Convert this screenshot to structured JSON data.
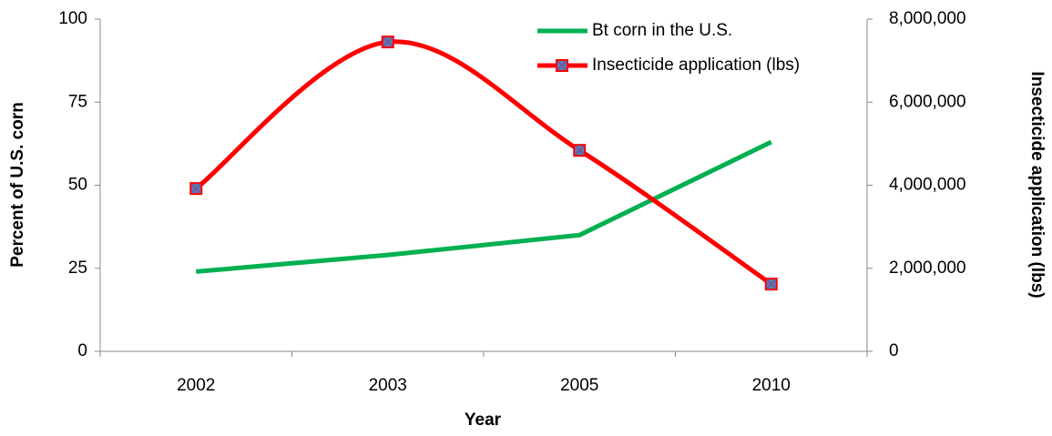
{
  "chart_data": {
    "type": "line",
    "categories": [
      "2002",
      "2003",
      "2005",
      "2010"
    ],
    "x_label": "Year",
    "y_label": "Percent of U.S. corn",
    "y2_label": "Insecticide application (lbs)",
    "ylim": [
      0,
      100
    ],
    "yticks": [
      0,
      25,
      50,
      75,
      100
    ],
    "y2lim": [
      0,
      8000000
    ],
    "y2ticks": [
      {
        "value": 0,
        "label": "0"
      },
      {
        "value": 2000000,
        "label": "2,000,000"
      },
      {
        "value": 4000000,
        "label": "4,000,000"
      },
      {
        "value": 6000000,
        "label": "6,000,000"
      },
      {
        "value": 8000000,
        "label": "8,000,000"
      }
    ],
    "grid": false,
    "legend": "upper right",
    "series": [
      {
        "name": "Bt corn in the U.S.",
        "color": "#00b050",
        "values": [
          24,
          29,
          35,
          63
        ]
      },
      {
        "name": "Insecticide application (lbs)",
        "color": "#ff0000",
        "axis": "y2",
        "smooth": true,
        "marker_color": "#4f81bd",
        "values": [
          3920000,
          7450000,
          4840000,
          1620000
        ]
      }
    ]
  }
}
